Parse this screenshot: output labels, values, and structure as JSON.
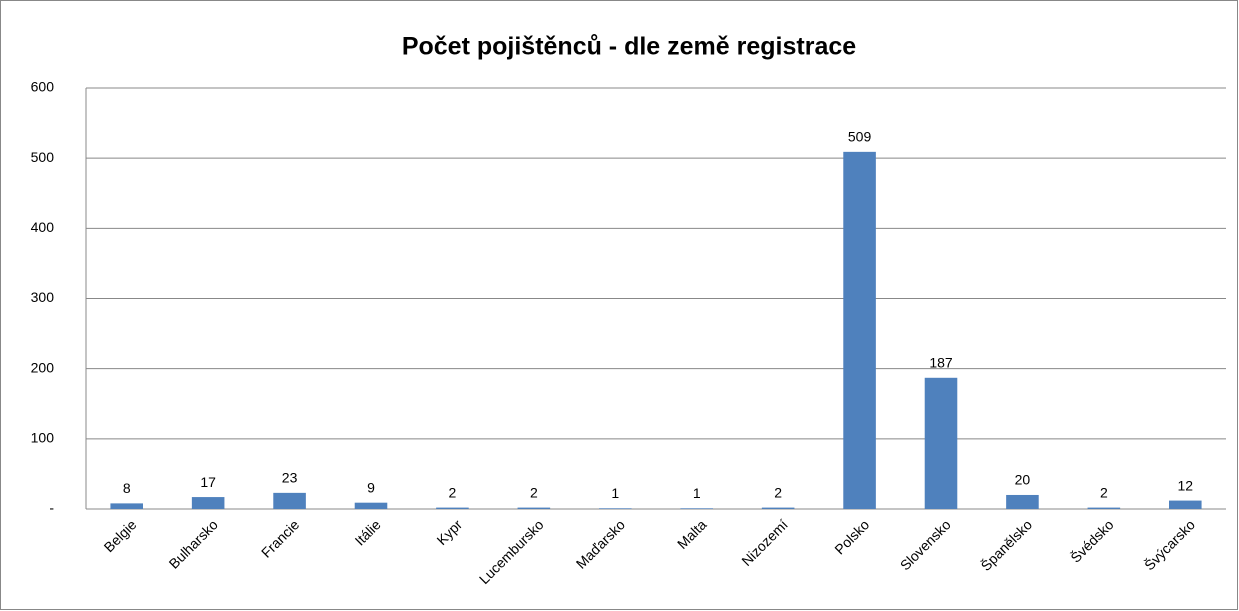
{
  "chart_data": {
    "type": "bar",
    "title": "Počet pojištěnců - dle země registrace",
    "categories": [
      "Belgie",
      "Bulharsko",
      "Francie",
      "Itálie",
      "Kypr",
      "Lucembursko",
      "Maďarsko",
      "Malta",
      "Nizozemí",
      "Polsko",
      "Slovensko",
      "Španělsko",
      "Švédsko",
      "Švýcarsko"
    ],
    "values": [
      8,
      17,
      23,
      9,
      2,
      2,
      1,
      1,
      2,
      509,
      187,
      20,
      2,
      12
    ],
    "color": "#4f81bd",
    "ylim": [
      0,
      600
    ],
    "yticks": [
      {
        "value": 0,
        "label": "-"
      },
      100,
      200,
      300,
      400,
      500,
      600
    ],
    "grid": true
  }
}
